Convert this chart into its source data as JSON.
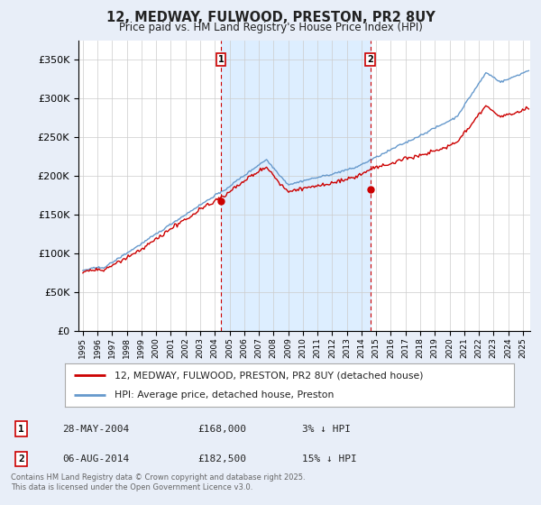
{
  "title": "12, MEDWAY, FULWOOD, PRESTON, PR2 8UY",
  "subtitle": "Price paid vs. HM Land Registry's House Price Index (HPI)",
  "ylabel_ticks": [
    "£0",
    "£50K",
    "£100K",
    "£150K",
    "£200K",
    "£250K",
    "£300K",
    "£350K"
  ],
  "ytick_values": [
    0,
    50000,
    100000,
    150000,
    200000,
    250000,
    300000,
    350000
  ],
  "ylim": [
    0,
    375000
  ],
  "xlim_start": 1994.7,
  "xlim_end": 2025.5,
  "background_color": "#e8eef8",
  "plot_background": "#ffffff",
  "hpi_color": "#6699cc",
  "price_color": "#cc0000",
  "shade_color": "#ddeeff",
  "marker1_x": 2004.41,
  "marker1_y": 168000,
  "marker2_x": 2014.59,
  "marker2_y": 182500,
  "legend_house": "12, MEDWAY, FULWOOD, PRESTON, PR2 8UY (detached house)",
  "legend_hpi": "HPI: Average price, detached house, Preston",
  "note1_label": "1",
  "note1_date": "28-MAY-2004",
  "note1_price": "£168,000",
  "note1_hpi": "3% ↓ HPI",
  "note2_label": "2",
  "note2_date": "06-AUG-2014",
  "note2_price": "£182,500",
  "note2_hpi": "15% ↓ HPI",
  "footer": "Contains HM Land Registry data © Crown copyright and database right 2025.\nThis data is licensed under the Open Government Licence v3.0."
}
